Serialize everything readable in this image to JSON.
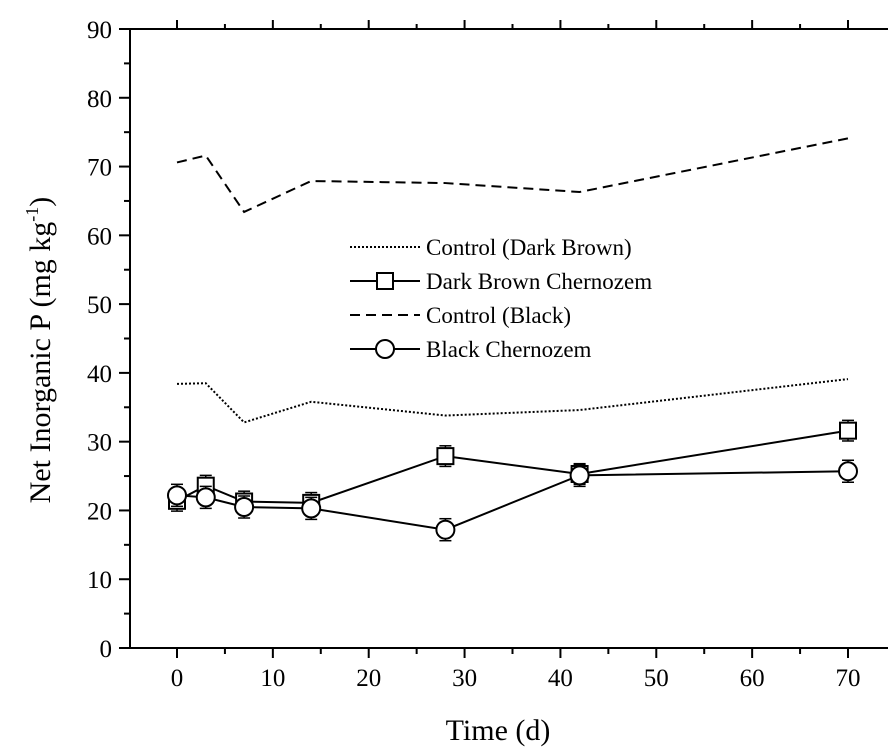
{
  "chart_data": {
    "type": "line",
    "xlabel": "Time (d)",
    "ylabel": {
      "main": "Net Inorganic P (mg kg",
      "sup": "-1",
      "close": ")"
    },
    "xlim": [
      -5,
      73
    ],
    "ylim": [
      0,
      90
    ],
    "xticks": [
      0,
      10,
      20,
      30,
      40,
      50,
      60,
      70
    ],
    "yticks": [
      0,
      10,
      20,
      30,
      40,
      50,
      60,
      70,
      80,
      90
    ],
    "grid": false,
    "legend_position": "center",
    "series": [
      {
        "name": "Control (Dark Brown)",
        "style": "dotted",
        "marker": "none",
        "x": [
          0,
          3,
          7,
          14,
          28,
          42,
          70
        ],
        "y": [
          38.4,
          38.5,
          32.8,
          35.8,
          33.8,
          34.6,
          39.1
        ]
      },
      {
        "name": "Dark Brown Chernozem",
        "style": "solid",
        "marker": "square",
        "x": [
          0,
          3,
          7,
          14,
          28,
          42,
          70
        ],
        "y": [
          21.4,
          23.6,
          21.3,
          21.1,
          27.9,
          25.3,
          31.6
        ],
        "error": [
          1.5,
          1.5,
          1.5,
          1.5,
          1.5,
          1.5,
          1.5
        ]
      },
      {
        "name": "Control (Black)",
        "style": "dashed",
        "marker": "none",
        "x": [
          0,
          3,
          7,
          14,
          28,
          42,
          70
        ],
        "y": [
          70.6,
          71.6,
          63.4,
          67.9,
          67.6,
          66.3,
          74.1
        ]
      },
      {
        "name": "Black Chernozem",
        "style": "solid",
        "marker": "circle",
        "x": [
          0,
          3,
          7,
          14,
          28,
          42,
          70
        ],
        "y": [
          22.2,
          21.9,
          20.5,
          20.3,
          17.2,
          25.1,
          25.7
        ],
        "error": [
          1.6,
          1.6,
          1.6,
          1.6,
          1.6,
          1.6,
          1.6
        ]
      }
    ]
  }
}
